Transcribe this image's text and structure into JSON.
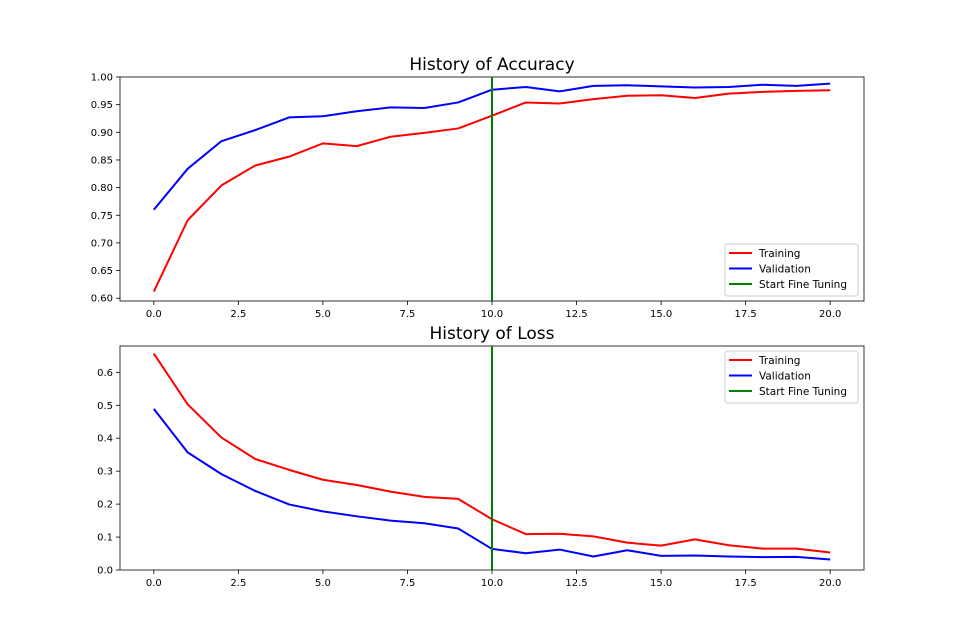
{
  "chart_data": [
    {
      "type": "line",
      "title": "History of Accuracy",
      "xlabel": "",
      "ylabel": "",
      "xlim": [
        -1,
        21
      ],
      "ylim": [
        0.595,
        1.0
      ],
      "xticks": [
        0.0,
        2.5,
        5.0,
        7.5,
        10.0,
        12.5,
        15.0,
        17.5,
        20.0
      ],
      "xtick_labels": [
        "0.0",
        "2.5",
        "5.0",
        "7.5",
        "10.0",
        "12.5",
        "15.0",
        "17.5",
        "20.0"
      ],
      "yticks": [
        0.6,
        0.65,
        0.7,
        0.75,
        0.8,
        0.85,
        0.9,
        0.95,
        1.0
      ],
      "ytick_labels": [
        "0.60",
        "0.65",
        "0.70",
        "0.75",
        "0.80",
        "0.85",
        "0.90",
        "0.95",
        "1.00"
      ],
      "x": [
        0,
        1,
        2,
        3,
        4,
        5,
        6,
        7,
        8,
        9,
        10,
        11,
        12,
        13,
        14,
        15,
        16,
        17,
        18,
        19,
        20
      ],
      "series": [
        {
          "name": "Training",
          "color": "#ff0000",
          "values": [
            0.612,
            0.741,
            0.804,
            0.84,
            0.856,
            0.88,
            0.875,
            0.892,
            0.899,
            0.907,
            0.93,
            0.954,
            0.952,
            0.96,
            0.966,
            0.967,
            0.962,
            0.97,
            0.973,
            0.975,
            0.976
          ]
        },
        {
          "name": "Validation",
          "color": "#0000ff",
          "values": [
            0.76,
            0.834,
            0.884,
            0.904,
            0.927,
            0.929,
            0.938,
            0.945,
            0.944,
            0.954,
            0.977,
            0.982,
            0.974,
            0.984,
            0.985,
            0.983,
            0.981,
            0.982,
            0.986,
            0.984,
            0.988
          ]
        }
      ],
      "vline": {
        "name": "Start Fine Tuning",
        "x": 10,
        "color": "#008000"
      },
      "legend_position": "lower right",
      "grid": false
    },
    {
      "type": "line",
      "title": "History of Loss",
      "xlabel": "",
      "ylabel": "",
      "xlim": [
        -1,
        21
      ],
      "ylim": [
        0.0,
        0.68
      ],
      "xticks": [
        0.0,
        2.5,
        5.0,
        7.5,
        10.0,
        12.5,
        15.0,
        17.5,
        20.0
      ],
      "xtick_labels": [
        "0.0",
        "2.5",
        "5.0",
        "7.5",
        "10.0",
        "12.5",
        "15.0",
        "17.5",
        "20.0"
      ],
      "yticks": [
        0.0,
        0.1,
        0.2,
        0.3,
        0.4,
        0.5,
        0.6
      ],
      "ytick_labels": [
        "0.0",
        "0.1",
        "0.2",
        "0.3",
        "0.4",
        "0.5",
        "0.6"
      ],
      "x": [
        0,
        1,
        2,
        3,
        4,
        5,
        6,
        7,
        8,
        9,
        10,
        11,
        12,
        13,
        14,
        15,
        16,
        17,
        18,
        19,
        20
      ],
      "series": [
        {
          "name": "Training",
          "color": "#ff0000",
          "values": [
            0.657,
            0.503,
            0.402,
            0.337,
            0.304,
            0.274,
            0.258,
            0.238,
            0.222,
            0.216,
            0.154,
            0.109,
            0.11,
            0.102,
            0.083,
            0.074,
            0.093,
            0.075,
            0.065,
            0.065,
            0.053
          ]
        },
        {
          "name": "Validation",
          "color": "#0000ff",
          "values": [
            0.489,
            0.357,
            0.291,
            0.24,
            0.199,
            0.178,
            0.163,
            0.15,
            0.142,
            0.126,
            0.064,
            0.051,
            0.062,
            0.041,
            0.06,
            0.043,
            0.044,
            0.041,
            0.039,
            0.04,
            0.032
          ]
        }
      ],
      "vline": {
        "name": "Start Fine Tuning",
        "x": 10,
        "color": "#008000"
      },
      "legend_position": "upper right",
      "grid": false
    }
  ]
}
